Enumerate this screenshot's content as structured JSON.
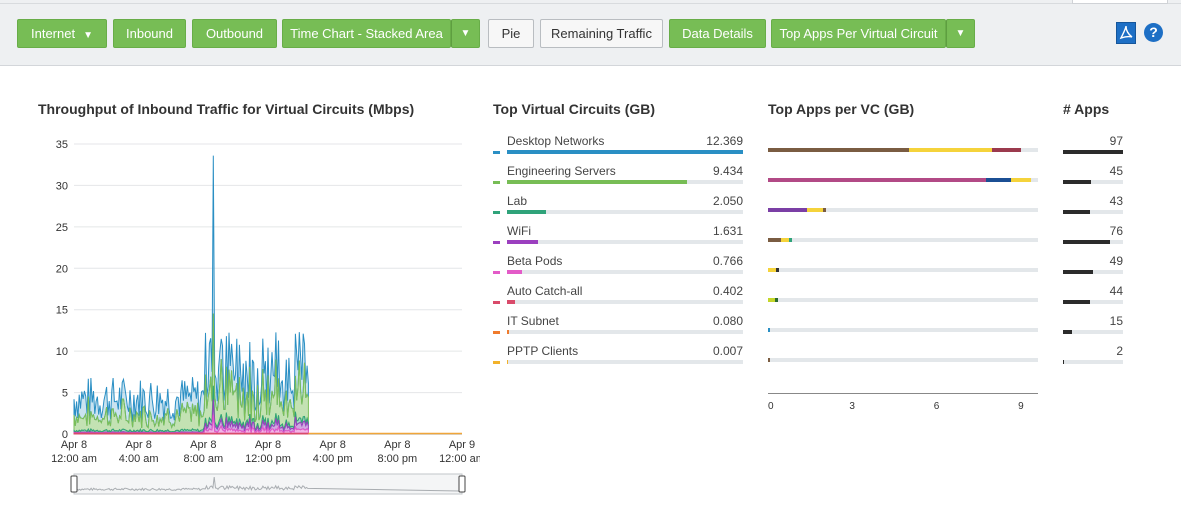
{
  "toolbar": {
    "buttons": [
      {
        "label": "Internet",
        "style": "green",
        "chevron": true
      },
      {
        "label": "Inbound",
        "style": "green"
      },
      {
        "label": "Outbound",
        "style": "green"
      },
      {
        "label": "Time Chart - Stacked Area",
        "style": "green"
      },
      {
        "label": "Pie",
        "style": "white"
      },
      {
        "label": "Remaining Traffic",
        "style": "white"
      },
      {
        "label": "Data Details",
        "style": "green"
      },
      {
        "label": "Top Apps Per Virtual Circuit",
        "style": "green"
      }
    ],
    "icons": {
      "pdf": "pdf-export-icon",
      "help": "help-icon",
      "help_glyph": "?"
    }
  },
  "throughput": {
    "title": "Throughput of Inbound Traffic for Virtual Circuits (Mbps)",
    "chart_data": {
      "type": "area",
      "title": "Throughput of Inbound Traffic for Virtual Circuits (Mbps)",
      "ylim": [
        0,
        35
      ],
      "yticks": [
        "0",
        "5",
        "10",
        "15",
        "20",
        "25",
        "30",
        "35"
      ],
      "xticks": [
        {
          "line1": "Apr 8",
          "line2": "12:00 am",
          "hour": 0
        },
        {
          "line1": "Apr 8",
          "line2": "4:00 am",
          "hour": 4
        },
        {
          "line1": "Apr 8",
          "line2": "8:00 am",
          "hour": 8
        },
        {
          "line1": "Apr 8",
          "line2": "12:00 pm",
          "hour": 12
        },
        {
          "line1": "Apr 8",
          "line2": "4:00 pm",
          "hour": 16
        },
        {
          "line1": "Apr 8",
          "line2": "8:00 pm",
          "hour": 20
        },
        {
          "line1": "Apr 9",
          "line2": "12:00 am",
          "hour": 24
        }
      ],
      "xlim_hours": [
        0,
        24
      ],
      "data_end_hour": 14.5,
      "peak": {
        "hour": 8.6,
        "value": 33.6
      },
      "grid": true,
      "series_colors": [
        "#2a8fc4",
        "#7bbf57",
        "#2fa37a",
        "#9b3fbf",
        "#e35bc8",
        "#d94a6a"
      ]
    }
  },
  "top_vc": {
    "title": "Top Virtual Circuits (GB)",
    "max": 12.369,
    "items": [
      {
        "name": "Desktop Networks",
        "value": "12.369",
        "num": 12.369,
        "color": "#2a8fc4"
      },
      {
        "name": "Engineering Servers",
        "value": "9.434",
        "num": 9.434,
        "color": "#77bd55"
      },
      {
        "name": "Lab",
        "value": "2.050",
        "num": 2.05,
        "color": "#2fa37a"
      },
      {
        "name": "WiFi",
        "value": "1.631",
        "num": 1.631,
        "color": "#9b3fbf"
      },
      {
        "name": "Beta Pods",
        "value": "0.766",
        "num": 0.766,
        "color": "#e35bc8"
      },
      {
        "name": "Auto Catch-all",
        "value": "0.402",
        "num": 0.402,
        "color": "#d94a6a"
      },
      {
        "name": "IT Subnet",
        "value": "0.080",
        "num": 0.08,
        "color": "#f07b2c"
      },
      {
        "name": "PPTP Clients",
        "value": "0.007",
        "num": 0.007,
        "color": "#f2b22a"
      }
    ]
  },
  "top_apps": {
    "title": "Top Apps per VC (GB)",
    "axis_max": 9.6,
    "ticks": [
      "0",
      "3",
      "6",
      "9"
    ],
    "rows": [
      [
        {
          "v": 5.0,
          "c": "#7a5c42"
        },
        {
          "v": 2.95,
          "c": "#f5d33b"
        },
        {
          "v": 1.05,
          "c": "#9b3a4e"
        }
      ],
      [
        {
          "v": 7.75,
          "c": "#b24a86"
        },
        {
          "v": 0.9,
          "c": "#1b4f94"
        },
        {
          "v": 0.7,
          "c": "#f5d33b"
        }
      ],
      [
        {
          "v": 1.4,
          "c": "#7b3fa5"
        },
        {
          "v": 0.55,
          "c": "#f5d33b"
        },
        {
          "v": 0.1,
          "c": "#7a5c42"
        }
      ],
      [
        {
          "v": 0.45,
          "c": "#7a5c42"
        },
        {
          "v": 0.3,
          "c": "#f5d33b"
        },
        {
          "v": 0.12,
          "c": "#2fa37a"
        }
      ],
      [
        {
          "v": 0.3,
          "c": "#f5d33b"
        },
        {
          "v": 0.1,
          "c": "#333333"
        }
      ],
      [
        {
          "v": 0.25,
          "c": "#c4d62a"
        },
        {
          "v": 0.1,
          "c": "#2b6b2e"
        }
      ],
      [
        {
          "v": 0.05,
          "c": "#2a8fc4"
        }
      ],
      [
        {
          "v": 0.004,
          "c": "#7a5c42"
        }
      ]
    ]
  },
  "num_apps": {
    "title": "# Apps",
    "max": 97,
    "items": [
      {
        "value": "97",
        "num": 97
      },
      {
        "value": "45",
        "num": 45
      },
      {
        "value": "43",
        "num": 43
      },
      {
        "value": "76",
        "num": 76
      },
      {
        "value": "49",
        "num": 49
      },
      {
        "value": "44",
        "num": 44
      },
      {
        "value": "15",
        "num": 15
      },
      {
        "value": "2",
        "num": 2
      }
    ]
  }
}
